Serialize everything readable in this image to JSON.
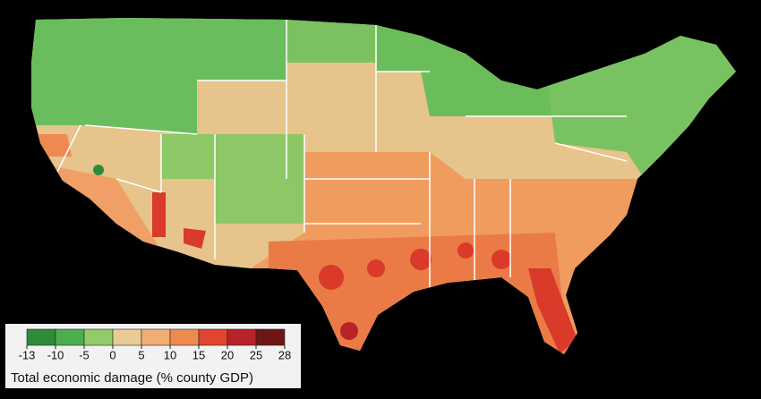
{
  "legend": {
    "title": "Total economic damage (% county GDP)",
    "ticks": [
      -13,
      -10,
      -5,
      0,
      5,
      10,
      15,
      20,
      25,
      28
    ],
    "colors": [
      "#2e8b3a",
      "#4cae4f",
      "#93cb6a",
      "#e8cc94",
      "#f2ad74",
      "#ee8a50",
      "#e0452f",
      "#b8232a",
      "#6e1616"
    ]
  }
}
